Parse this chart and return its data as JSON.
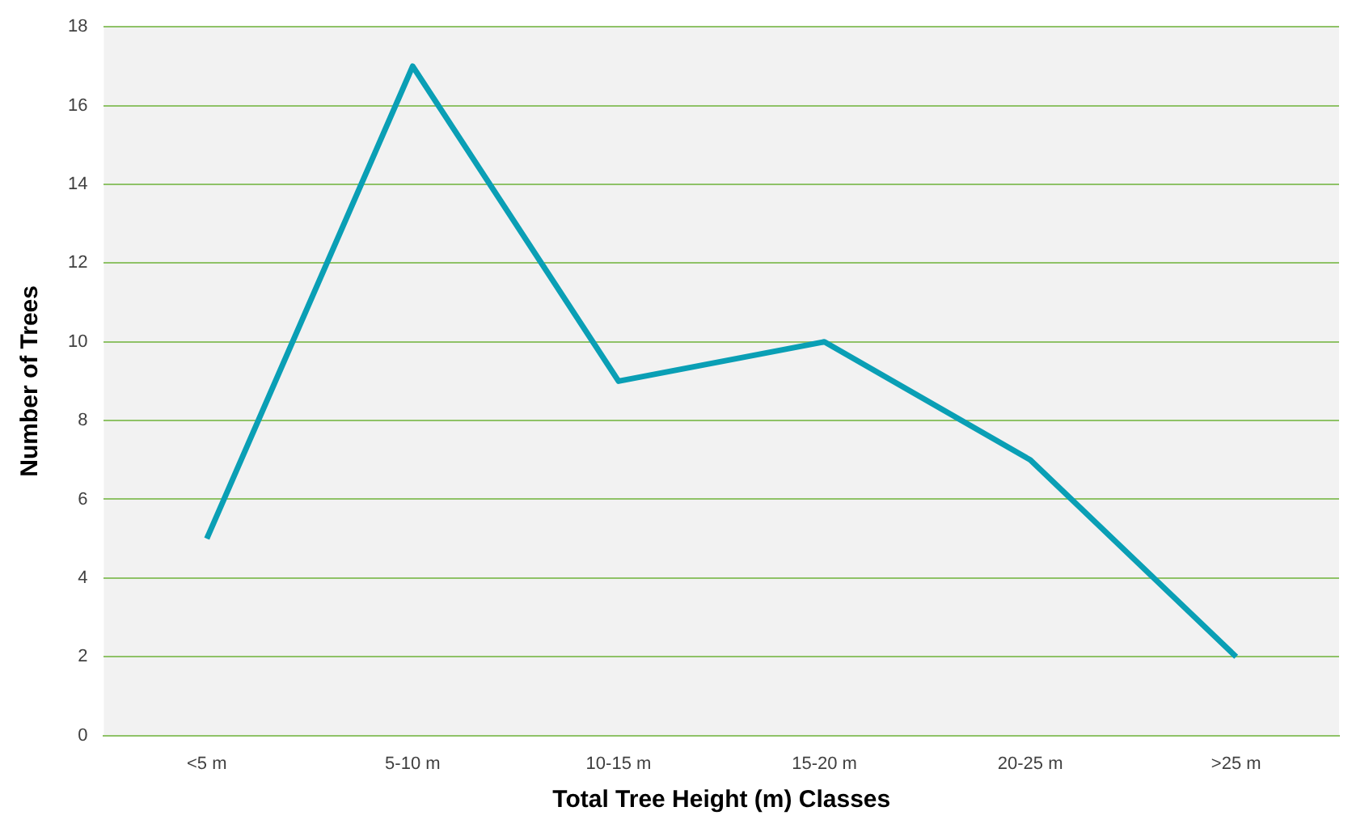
{
  "chart_data": {
    "type": "line",
    "xlabel": "Total Tree Height (m) Classes",
    "ylabel": "Number of Trees",
    "categories": [
      "<5 m",
      "5-10 m",
      "10-15 m",
      "15-20 m",
      "20-25 m",
      ">25 m"
    ],
    "series": [
      {
        "color": "#0a9fb5",
        "values": [
          5,
          17,
          9,
          10,
          7,
          2
        ]
      }
    ],
    "ylim": [
      0,
      18
    ],
    "yticks": [
      0,
      2,
      4,
      6,
      8,
      10,
      12,
      14,
      16,
      18
    ],
    "grid": "y",
    "legend": false,
    "marker": "none",
    "line_style": "solid"
  }
}
